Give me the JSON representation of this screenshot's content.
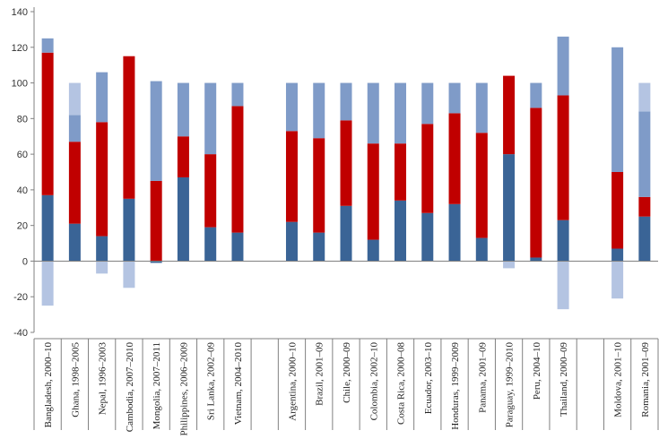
{
  "chart_data": {
    "type": "bar",
    "stacked": true,
    "title": "",
    "xlabel": "",
    "ylabel": "",
    "ylim": [
      -40,
      140
    ],
    "yticks": [
      -40,
      -20,
      0,
      20,
      40,
      60,
      80,
      100,
      120,
      140
    ],
    "grid": false,
    "legend": "none",
    "colors": {
      "dark_blue": "#3a6496",
      "red": "#c00000",
      "mid_blue": "#7f9bc8",
      "light_blue": "#b4c4e2",
      "axis": "#808080"
    },
    "categories": [
      "Bangladesh, 2000–10",
      "Ghana, 1998–2005",
      "Nepal, 1996–2003",
      "Cambodia, 2007–2010",
      "Mongolia, 2007–2011",
      "Philippines, 2006–2009",
      "Sri Lanka, 2002–09",
      "Vietnam, 2004–2010",
      "Argentina, 2000–10",
      "Brazil, 2001–09",
      "Chile, 2000–09",
      "Colombia, 2002–10",
      "Costa Rica, 2000–08",
      "Ecuador, 2003–10",
      "Honduras, 1999–2009",
      "Panama, 2001–09",
      "Paraguay, 1999–2010",
      "Peru, 2004–10",
      "Thailand, 2000–09",
      "Moldova, 2001–10",
      "Romania, 2001–09"
    ],
    "groups": [
      8,
      11,
      2
    ],
    "series": [
      {
        "color": "dark_blue",
        "values": [
          37,
          21,
          14,
          35,
          -1,
          47,
          19,
          16,
          22,
          16,
          31,
          12,
          34,
          27,
          32,
          13,
          60,
          2,
          23,
          7,
          25
        ]
      },
      {
        "color": "red",
        "values": [
          80,
          46,
          64,
          80,
          45,
          23,
          41,
          71,
          51,
          53,
          48,
          54,
          32,
          50,
          51,
          59,
          44,
          84,
          70,
          43,
          11
        ]
      },
      {
        "color": "mid_blue",
        "values": [
          8,
          15,
          28,
          0,
          56,
          30,
          40,
          13,
          27,
          31,
          21,
          34,
          34,
          23,
          17,
          28,
          0,
          14,
          33,
          70,
          48
        ]
      },
      {
        "color": "light_blue",
        "values": [
          -25,
          18,
          -7,
          -15,
          0,
          0,
          0,
          0,
          0,
          0,
          0,
          0,
          0,
          0,
          0,
          0,
          -4,
          0,
          -27,
          -21,
          16
        ]
      }
    ]
  }
}
